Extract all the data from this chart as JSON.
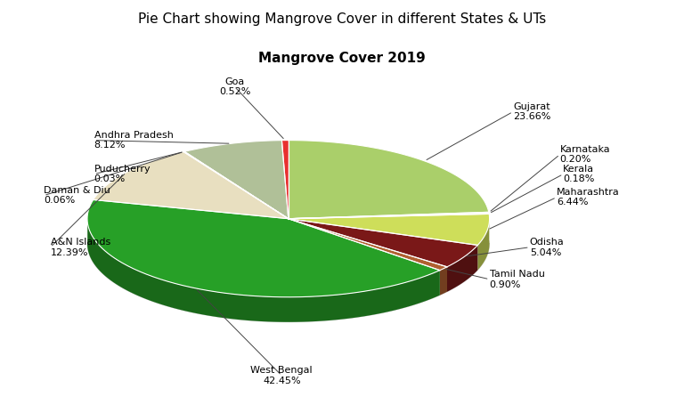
{
  "title": "Pie Chart showing Mangrove Cover in different States & UTs",
  "pie_title": "Mangrove Cover 2019",
  "labels": [
    "Gujarat",
    "Karnataka",
    "Kerala",
    "Maharashtra",
    "Odisha",
    "Tamil Nadu",
    "West Bengal",
    "A&N Islands",
    "Daman & Diu",
    "Puducherry",
    "Andhra Pradesh",
    "Goa"
  ],
  "percentages": [
    23.66,
    0.2,
    0.18,
    6.44,
    5.04,
    0.9,
    42.45,
    12.39,
    0.06,
    0.03,
    8.12,
    0.52
  ],
  "colors": [
    "#aacf6a",
    "#6b8c4e",
    "#e8c87a",
    "#cede5a",
    "#7a1818",
    "#b06030",
    "#27a027",
    "#e8dfc0",
    "#9a9a80",
    "#4a8a9a",
    "#b0c098",
    "#e83030"
  ],
  "background_color": "#ffffff",
  "title_fontsize": 11,
  "pie_title_fontsize": 11,
  "label_fontsize": 8
}
